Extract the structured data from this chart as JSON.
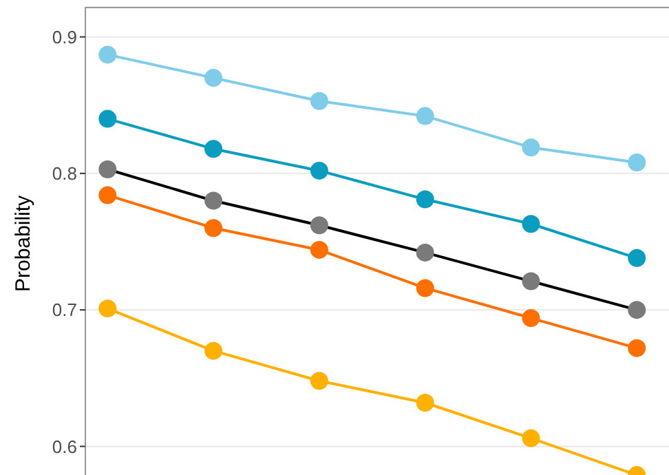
{
  "chart_data": {
    "type": "line",
    "ylabel": "Probability",
    "categories": [
      null,
      null,
      null,
      null,
      null,
      null
    ],
    "ylim": [
      0.575,
      0.922
    ],
    "yticks": [
      0.6,
      0.7,
      0.8,
      0.9
    ],
    "grid": true,
    "legend": false,
    "marker": "circle",
    "line_style": "solid",
    "tick_labels": "y",
    "series": [
      {
        "color": "#7ecbea",
        "values": [
          0.887,
          0.87,
          0.853,
          0.842,
          0.819,
          0.808
        ]
      },
      {
        "color": "#0a9dc0",
        "values": [
          0.84,
          0.818,
          0.802,
          0.781,
          0.763,
          0.738
        ],
        "errors": [
          0.004,
          0.004,
          0.004,
          0.004,
          0.004,
          0.004
        ]
      },
      {
        "color": "#000000",
        "colors": [
          "#7a7a7a",
          "#7a7a7a",
          "#7a7a7a",
          "#7a7a7a",
          "#7a7a7a",
          "#7a7a7a"
        ],
        "values": [
          0.803,
          0.78,
          0.762,
          0.742,
          0.721,
          0.7
        ]
      },
      {
        "color": "#ff6f00",
        "values": [
          0.784,
          0.76,
          0.744,
          0.716,
          0.694,
          0.672
        ],
        "errors": [
          0.005,
          0.005,
          0.005,
          0.005,
          0.005,
          0.005
        ]
      },
      {
        "color": "#ffb000",
        "values": [
          0.701,
          0.67,
          0.648,
          0.632,
          0.606,
          0.579
        ],
        "errors": [
          0.006,
          0.006,
          0.006,
          0.006,
          0.006,
          0.006
        ]
      }
    ]
  }
}
